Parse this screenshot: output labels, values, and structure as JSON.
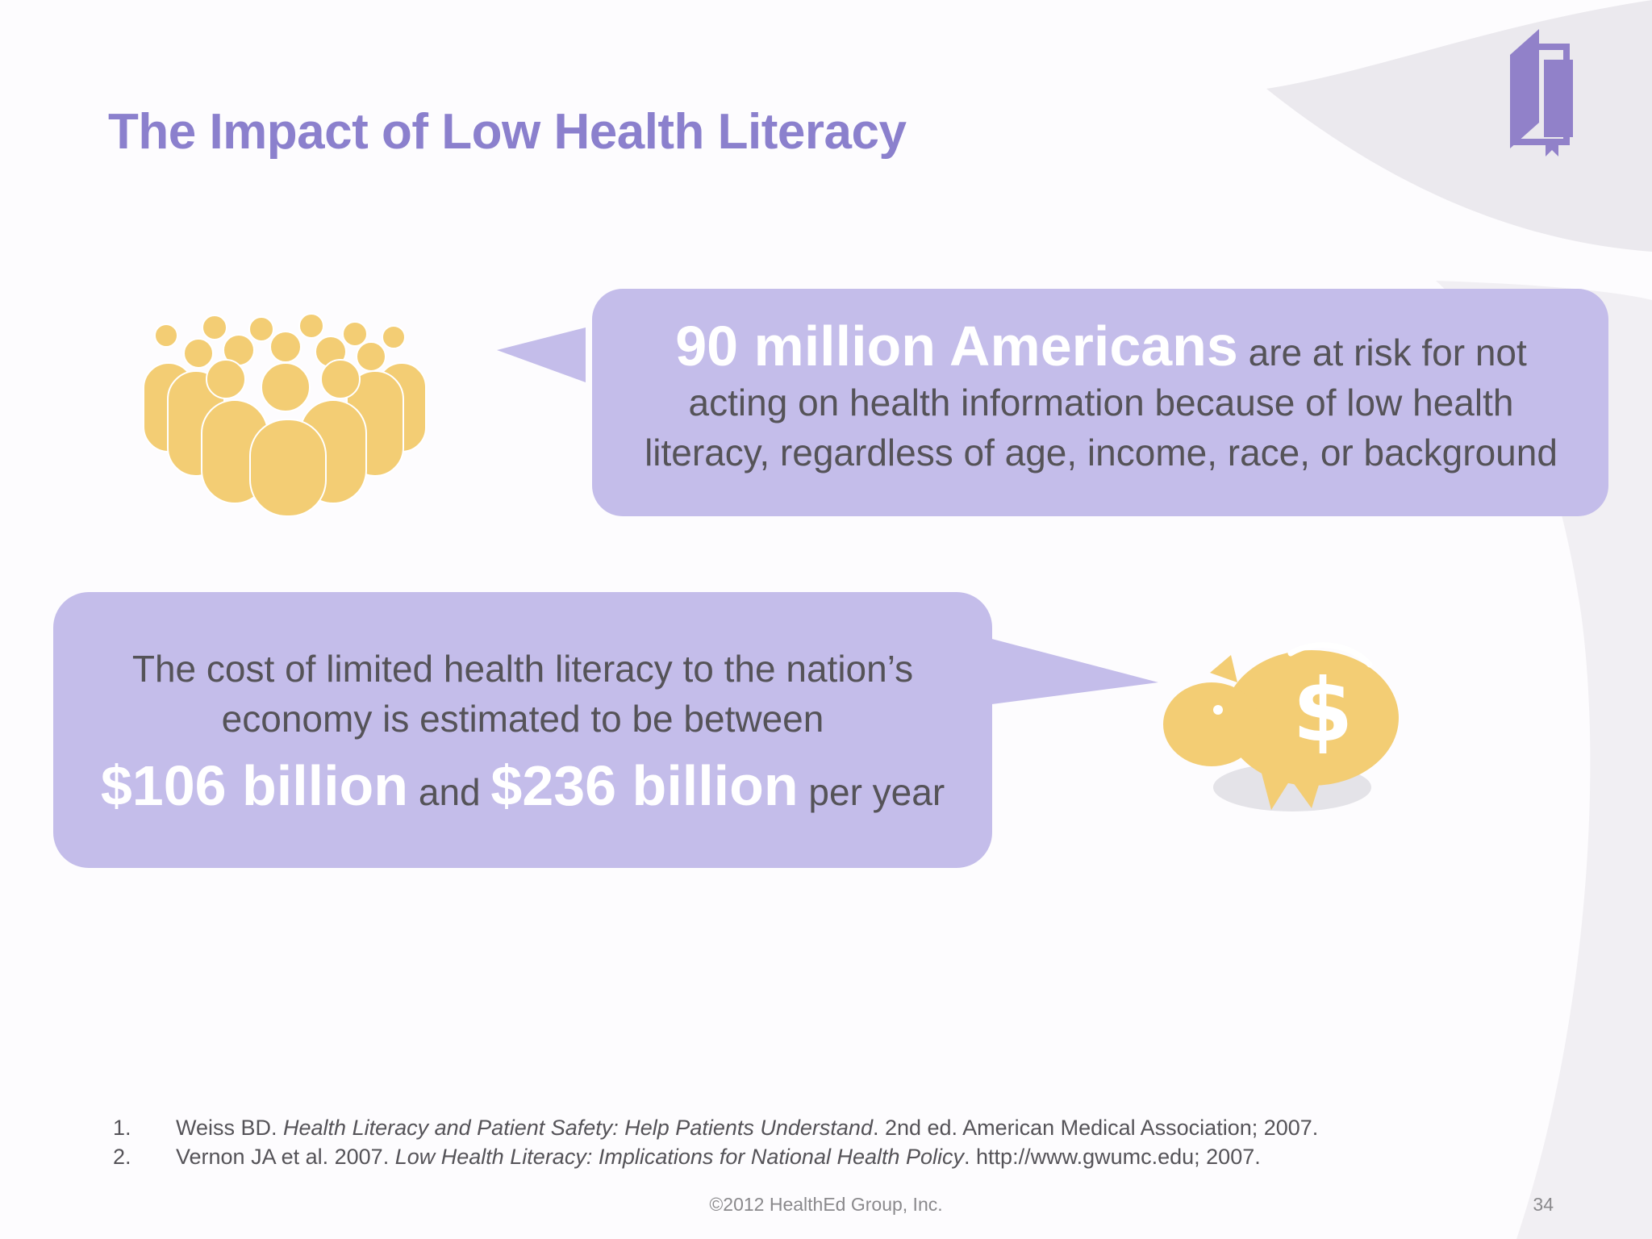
{
  "slide": {
    "title": "The Impact of Low Health Literacy",
    "page_number": "34",
    "copyright": "©2012 HealthEd Group, Inc."
  },
  "callouts": {
    "americans": {
      "highlight": "90 million Americans",
      "text_line1": " are at risk for not",
      "text_line2": "acting on health information because of low health",
      "text_line3": "literacy, regardless of age, income, race, or background"
    },
    "cost": {
      "line1": "The cost of limited health literacy to the nation’s",
      "line2": "economy is estimated to be between",
      "low_amount": "$106 billion",
      "connector": " and ",
      "high_amount": "$236 billion",
      "suffix": " per year"
    }
  },
  "references": [
    {
      "num": "1.",
      "prefix": "Weiss BD. ",
      "title": "Health Literacy and Patient Safety: Help Patients Understand",
      "suffix": ". 2nd ed. American Medical Association; 2007."
    },
    {
      "num": "2.",
      "prefix": "Vernon JA et al. 2007. ",
      "title": "Low Health Literacy: Implications for National Health Policy",
      "suffix": ". http://www.gwumc.edu; 2007."
    }
  ],
  "icons": {
    "logo": "book-icon",
    "people": "people-group-icon",
    "pig": "piggy-bank-icon"
  },
  "colors": {
    "title": "#8b80cd",
    "bubble": "#c4bdea",
    "highlight": "#ffffff",
    "body_text": "#555358",
    "icon_gold": "#f3cd74",
    "logo": "#9181c9"
  }
}
